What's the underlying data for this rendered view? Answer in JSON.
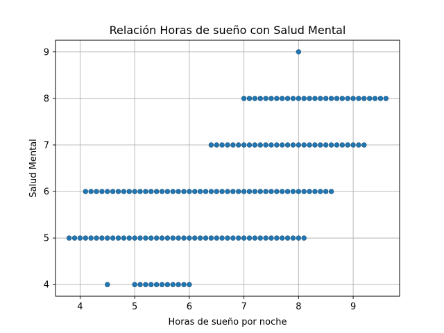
{
  "chart_data": {
    "type": "scatter",
    "title": "Relación Horas de sueño con Salud Mental",
    "xlabel": "Horas de sueño por noche",
    "ylabel": "Salud Mental",
    "xlim": [
      3.55,
      9.85
    ],
    "ylim": [
      3.75,
      9.25
    ],
    "xticks": [
      4,
      5,
      6,
      7,
      8,
      9
    ],
    "yticks": [
      4,
      5,
      6,
      7,
      8,
      9
    ],
    "grid": true,
    "marker_color": "#1f77b4",
    "series": [
      {
        "points": [
          {
            "x": 8.0,
            "y": 9
          },
          {
            "x": 7.0,
            "y": 8
          },
          {
            "x": 7.1,
            "y": 8
          },
          {
            "x": 7.2,
            "y": 8
          },
          {
            "x": 7.3,
            "y": 8
          },
          {
            "x": 7.4,
            "y": 8
          },
          {
            "x": 7.5,
            "y": 8
          },
          {
            "x": 7.6,
            "y": 8
          },
          {
            "x": 7.7,
            "y": 8
          },
          {
            "x": 7.8,
            "y": 8
          },
          {
            "x": 7.9,
            "y": 8
          },
          {
            "x": 8.0,
            "y": 8
          },
          {
            "x": 8.1,
            "y": 8
          },
          {
            "x": 8.2,
            "y": 8
          },
          {
            "x": 8.3,
            "y": 8
          },
          {
            "x": 8.4,
            "y": 8
          },
          {
            "x": 8.5,
            "y": 8
          },
          {
            "x": 8.6,
            "y": 8
          },
          {
            "x": 8.7,
            "y": 8
          },
          {
            "x": 8.8,
            "y": 8
          },
          {
            "x": 8.9,
            "y": 8
          },
          {
            "x": 9.0,
            "y": 8
          },
          {
            "x": 9.1,
            "y": 8
          },
          {
            "x": 9.2,
            "y": 8
          },
          {
            "x": 9.3,
            "y": 8
          },
          {
            "x": 9.4,
            "y": 8
          },
          {
            "x": 9.5,
            "y": 8
          },
          {
            "x": 9.6,
            "y": 8
          },
          {
            "x": 6.4,
            "y": 7
          },
          {
            "x": 6.5,
            "y": 7
          },
          {
            "x": 6.6,
            "y": 7
          },
          {
            "x": 6.7,
            "y": 7
          },
          {
            "x": 6.8,
            "y": 7
          },
          {
            "x": 6.9,
            "y": 7
          },
          {
            "x": 7.0,
            "y": 7
          },
          {
            "x": 7.1,
            "y": 7
          },
          {
            "x": 7.2,
            "y": 7
          },
          {
            "x": 7.3,
            "y": 7
          },
          {
            "x": 7.4,
            "y": 7
          },
          {
            "x": 7.5,
            "y": 7
          },
          {
            "x": 7.6,
            "y": 7
          },
          {
            "x": 7.7,
            "y": 7
          },
          {
            "x": 7.8,
            "y": 7
          },
          {
            "x": 7.9,
            "y": 7
          },
          {
            "x": 8.0,
            "y": 7
          },
          {
            "x": 8.1,
            "y": 7
          },
          {
            "x": 8.2,
            "y": 7
          },
          {
            "x": 8.3,
            "y": 7
          },
          {
            "x": 8.4,
            "y": 7
          },
          {
            "x": 8.5,
            "y": 7
          },
          {
            "x": 8.6,
            "y": 7
          },
          {
            "x": 8.7,
            "y": 7
          },
          {
            "x": 8.8,
            "y": 7
          },
          {
            "x": 8.9,
            "y": 7
          },
          {
            "x": 9.0,
            "y": 7
          },
          {
            "x": 9.1,
            "y": 7
          },
          {
            "x": 9.2,
            "y": 7
          },
          {
            "x": 4.1,
            "y": 6
          },
          {
            "x": 4.2,
            "y": 6
          },
          {
            "x": 4.3,
            "y": 6
          },
          {
            "x": 4.4,
            "y": 6
          },
          {
            "x": 4.5,
            "y": 6
          },
          {
            "x": 4.6,
            "y": 6
          },
          {
            "x": 4.7,
            "y": 6
          },
          {
            "x": 4.8,
            "y": 6
          },
          {
            "x": 4.9,
            "y": 6
          },
          {
            "x": 5.0,
            "y": 6
          },
          {
            "x": 5.1,
            "y": 6
          },
          {
            "x": 5.2,
            "y": 6
          },
          {
            "x": 5.3,
            "y": 6
          },
          {
            "x": 5.4,
            "y": 6
          },
          {
            "x": 5.5,
            "y": 6
          },
          {
            "x": 5.6,
            "y": 6
          },
          {
            "x": 5.7,
            "y": 6
          },
          {
            "x": 5.8,
            "y": 6
          },
          {
            "x": 5.9,
            "y": 6
          },
          {
            "x": 6.0,
            "y": 6
          },
          {
            "x": 6.1,
            "y": 6
          },
          {
            "x": 6.2,
            "y": 6
          },
          {
            "x": 6.3,
            "y": 6
          },
          {
            "x": 6.4,
            "y": 6
          },
          {
            "x": 6.5,
            "y": 6
          },
          {
            "x": 6.6,
            "y": 6
          },
          {
            "x": 6.7,
            "y": 6
          },
          {
            "x": 6.8,
            "y": 6
          },
          {
            "x": 6.9,
            "y": 6
          },
          {
            "x": 7.0,
            "y": 6
          },
          {
            "x": 7.1,
            "y": 6
          },
          {
            "x": 7.2,
            "y": 6
          },
          {
            "x": 7.3,
            "y": 6
          },
          {
            "x": 7.4,
            "y": 6
          },
          {
            "x": 7.5,
            "y": 6
          },
          {
            "x": 7.6,
            "y": 6
          },
          {
            "x": 7.7,
            "y": 6
          },
          {
            "x": 7.8,
            "y": 6
          },
          {
            "x": 7.9,
            "y": 6
          },
          {
            "x": 8.0,
            "y": 6
          },
          {
            "x": 8.1,
            "y": 6
          },
          {
            "x": 8.2,
            "y": 6
          },
          {
            "x": 8.3,
            "y": 6
          },
          {
            "x": 8.4,
            "y": 6
          },
          {
            "x": 8.5,
            "y": 6
          },
          {
            "x": 8.6,
            "y": 6
          },
          {
            "x": 3.8,
            "y": 5
          },
          {
            "x": 3.9,
            "y": 5
          },
          {
            "x": 4.0,
            "y": 5
          },
          {
            "x": 4.1,
            "y": 5
          },
          {
            "x": 4.2,
            "y": 5
          },
          {
            "x": 4.3,
            "y": 5
          },
          {
            "x": 4.4,
            "y": 5
          },
          {
            "x": 4.5,
            "y": 5
          },
          {
            "x": 4.6,
            "y": 5
          },
          {
            "x": 4.7,
            "y": 5
          },
          {
            "x": 4.8,
            "y": 5
          },
          {
            "x": 4.9,
            "y": 5
          },
          {
            "x": 5.0,
            "y": 5
          },
          {
            "x": 5.1,
            "y": 5
          },
          {
            "x": 5.2,
            "y": 5
          },
          {
            "x": 5.3,
            "y": 5
          },
          {
            "x": 5.4,
            "y": 5
          },
          {
            "x": 5.5,
            "y": 5
          },
          {
            "x": 5.6,
            "y": 5
          },
          {
            "x": 5.7,
            "y": 5
          },
          {
            "x": 5.8,
            "y": 5
          },
          {
            "x": 5.9,
            "y": 5
          },
          {
            "x": 6.0,
            "y": 5
          },
          {
            "x": 6.1,
            "y": 5
          },
          {
            "x": 6.2,
            "y": 5
          },
          {
            "x": 6.3,
            "y": 5
          },
          {
            "x": 6.4,
            "y": 5
          },
          {
            "x": 6.5,
            "y": 5
          },
          {
            "x": 6.6,
            "y": 5
          },
          {
            "x": 6.7,
            "y": 5
          },
          {
            "x": 6.8,
            "y": 5
          },
          {
            "x": 6.9,
            "y": 5
          },
          {
            "x": 7.0,
            "y": 5
          },
          {
            "x": 7.1,
            "y": 5
          },
          {
            "x": 7.2,
            "y": 5
          },
          {
            "x": 7.3,
            "y": 5
          },
          {
            "x": 7.4,
            "y": 5
          },
          {
            "x": 7.5,
            "y": 5
          },
          {
            "x": 7.6,
            "y": 5
          },
          {
            "x": 7.7,
            "y": 5
          },
          {
            "x": 7.8,
            "y": 5
          },
          {
            "x": 7.9,
            "y": 5
          },
          {
            "x": 8.0,
            "y": 5
          },
          {
            "x": 8.1,
            "y": 5
          },
          {
            "x": 4.5,
            "y": 4
          },
          {
            "x": 5.0,
            "y": 4
          },
          {
            "x": 5.1,
            "y": 4
          },
          {
            "x": 5.2,
            "y": 4
          },
          {
            "x": 5.3,
            "y": 4
          },
          {
            "x": 5.4,
            "y": 4
          },
          {
            "x": 5.5,
            "y": 4
          },
          {
            "x": 5.6,
            "y": 4
          },
          {
            "x": 5.7,
            "y": 4
          },
          {
            "x": 5.8,
            "y": 4
          },
          {
            "x": 5.9,
            "y": 4
          },
          {
            "x": 6.0,
            "y": 4
          }
        ]
      }
    ]
  }
}
